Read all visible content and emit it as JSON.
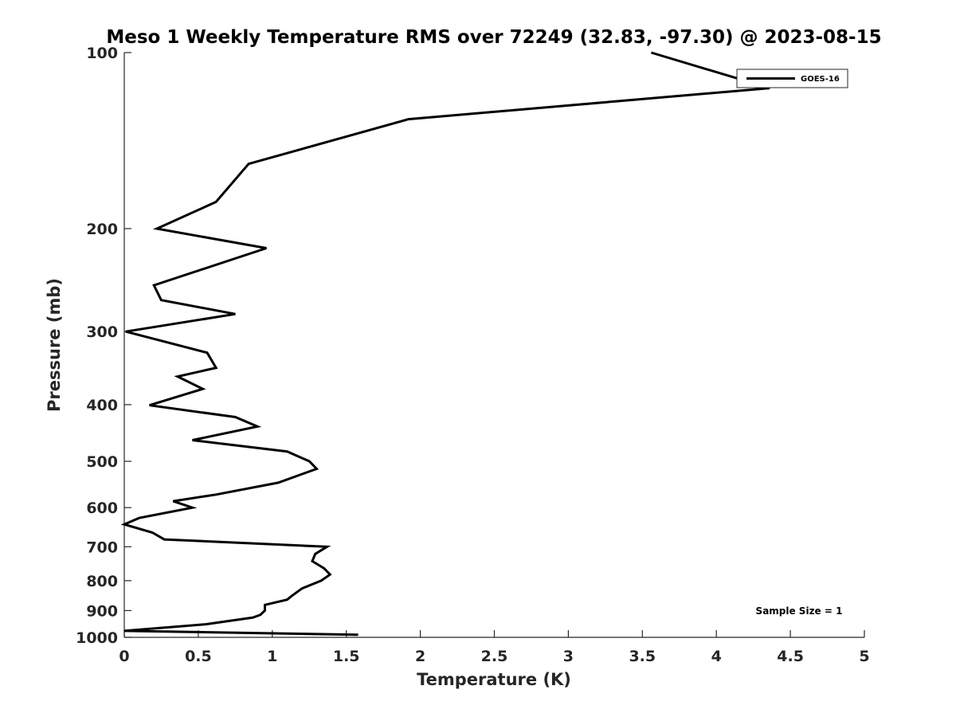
{
  "chart_data": {
    "type": "line",
    "title": "Meso 1 Weekly Temperature RMS over 72249 (32.83, -97.30) @ 2023-08-15",
    "xlabel": "Temperature (K)",
    "ylabel": "Pressure (mb)",
    "xlim": [
      0,
      5
    ],
    "ylim": [
      100,
      1000
    ],
    "y_scale": "log",
    "y_reversed": true,
    "x_ticks": [
      "0",
      "0.5",
      "1",
      "1.5",
      "2",
      "2.5",
      "3",
      "3.5",
      "4",
      "4.5",
      "5"
    ],
    "y_ticks": [
      "100",
      "200",
      "300",
      "400",
      "500",
      "600",
      "700",
      "800",
      "900",
      "1000"
    ],
    "grid": false,
    "legend_position": "top-right",
    "annotation": "Sample Size = 1",
    "series": [
      {
        "name": "GOES-16",
        "color": "#000000",
        "points": [
          [
            3.56,
            100
          ],
          [
            4.36,
            115
          ],
          [
            1.92,
            130
          ],
          [
            0.84,
            155
          ],
          [
            0.62,
            180
          ],
          [
            0.22,
            200
          ],
          [
            0.96,
            216
          ],
          [
            0.2,
            250
          ],
          [
            0.25,
            265
          ],
          [
            0.75,
            280
          ],
          [
            0.01,
            300
          ],
          [
            0.56,
            326
          ],
          [
            0.62,
            346
          ],
          [
            0.36,
            358
          ],
          [
            0.53,
            376
          ],
          [
            0.17,
            401
          ],
          [
            0.75,
            420
          ],
          [
            0.9,
            436
          ],
          [
            0.46,
            460
          ],
          [
            1.1,
            481
          ],
          [
            1.25,
            500
          ],
          [
            1.3,
            515
          ],
          [
            1.04,
            544
          ],
          [
            0.62,
            570
          ],
          [
            0.33,
            585
          ],
          [
            0.46,
            600
          ],
          [
            0.1,
            625
          ],
          [
            0.0,
            641
          ],
          [
            0.19,
            662
          ],
          [
            0.27,
            680
          ],
          [
            1.37,
            700
          ],
          [
            1.29,
            720
          ],
          [
            1.27,
            741
          ],
          [
            1.35,
            762
          ],
          [
            1.39,
            781
          ],
          [
            1.33,
            800
          ],
          [
            1.2,
            825
          ],
          [
            1.13,
            850
          ],
          [
            1.1,
            862
          ],
          [
            0.95,
            880
          ],
          [
            0.95,
            900
          ],
          [
            0.92,
            915
          ],
          [
            0.87,
            925
          ],
          [
            0.55,
            950
          ],
          [
            0.0,
            975
          ],
          [
            1.58,
            990
          ]
        ]
      }
    ]
  }
}
